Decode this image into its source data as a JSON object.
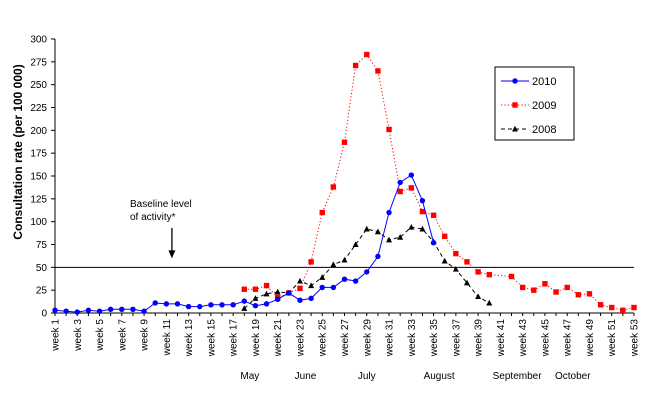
{
  "chart_data": {
    "type": "line",
    "ylabel": "Consultation rate (per 100 000)",
    "ylim": [
      0,
      300
    ],
    "yticks": [
      0,
      25,
      50,
      75,
      100,
      125,
      150,
      175,
      200,
      225,
      250,
      275,
      300
    ],
    "xlim": [
      1,
      53
    ],
    "xticks": [
      1,
      3,
      5,
      7,
      9,
      11,
      13,
      15,
      17,
      19,
      21,
      23,
      25,
      27,
      29,
      31,
      33,
      35,
      37,
      39,
      41,
      43,
      45,
      47,
      49,
      51,
      53
    ],
    "xtick_prefix": "week ",
    "months": [
      {
        "label": "May",
        "week": 18.5
      },
      {
        "label": "June",
        "week": 23.5
      },
      {
        "label": "July",
        "week": 29
      },
      {
        "label": "August",
        "week": 35.5
      },
      {
        "label": "September",
        "week": 42.5
      },
      {
        "label": "October",
        "week": 47.5
      }
    ],
    "baseline": {
      "value": 50,
      "label_line1": "Baseline level",
      "label_line2": "of activity*",
      "week": 11.5
    },
    "legend_position": "top-right",
    "series": [
      {
        "name": "2010",
        "color": "#0000ff",
        "marker": "circle",
        "line": "solid",
        "x": [
          1,
          2,
          3,
          4,
          5,
          6,
          7,
          8,
          9,
          10,
          11,
          12,
          13,
          14,
          15,
          16,
          17,
          18,
          19,
          20,
          21,
          22,
          23,
          24,
          25,
          26,
          27,
          28,
          29,
          30,
          31,
          32,
          33,
          34,
          35
        ],
        "values": [
          3,
          2,
          1,
          3,
          2,
          4,
          4,
          4,
          2,
          11,
          10,
          10,
          7,
          7,
          9,
          9,
          9,
          13,
          8,
          10,
          15,
          22,
          14,
          16,
          28,
          28,
          37,
          35,
          45,
          62,
          110,
          143,
          151,
          123,
          77
        ]
      },
      {
        "name": "2009",
        "color": "#ff0000",
        "marker": "square",
        "line": "dotted",
        "x": [
          18,
          19,
          20,
          21,
          22,
          23,
          24,
          25,
          26,
          27,
          28,
          29,
          30,
          31,
          32,
          33,
          34,
          35,
          36,
          37,
          38,
          39,
          40,
          42,
          43,
          44,
          45,
          46,
          47,
          48,
          49,
          50,
          51,
          52,
          53
        ],
        "values": [
          26,
          26,
          30,
          17,
          22,
          27,
          56,
          110,
          138,
          187,
          271,
          283,
          265,
          201,
          133,
          137,
          111,
          107,
          84,
          65,
          56,
          45,
          42,
          40,
          28,
          25,
          32,
          23,
          28,
          20,
          21,
          9,
          6,
          3,
          6
        ]
      },
      {
        "name": "2008",
        "color": "#000000",
        "marker": "triangle",
        "line": "dashed",
        "x": [
          18,
          19,
          20,
          21,
          22,
          23,
          24,
          25,
          26,
          27,
          28,
          29,
          30,
          31,
          32,
          33,
          34,
          35,
          36,
          37,
          38,
          39,
          40
        ],
        "values": [
          5,
          16,
          21,
          23,
          22,
          35,
          30,
          39,
          53,
          58,
          75,
          92,
          89,
          80,
          83,
          94,
          92,
          78,
          57,
          48,
          33,
          18,
          11
        ]
      }
    ]
  }
}
